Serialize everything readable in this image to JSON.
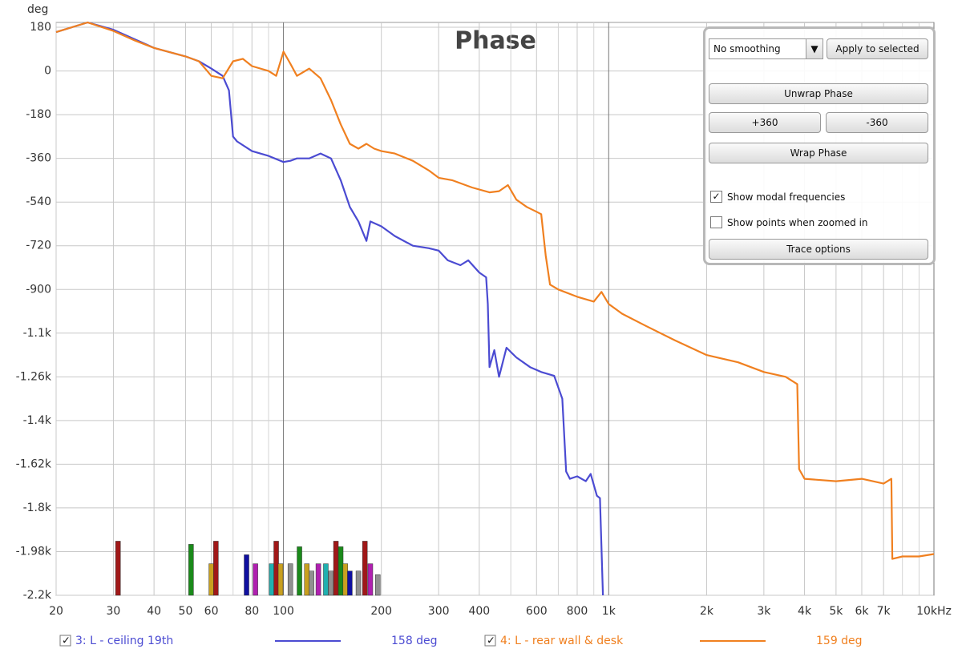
{
  "chart_data": {
    "type": "line",
    "title": "Phase",
    "y_label": "deg",
    "xscale": "log",
    "xlim": [
      20,
      10000
    ],
    "ylim": [
      -2160,
      200
    ],
    "xticks": [
      20,
      30,
      40,
      50,
      60,
      80,
      100,
      200,
      300,
      400,
      600,
      800,
      {
        "value": 1000,
        "label": "1k"
      },
      {
        "value": 2000,
        "label": "2k"
      },
      {
        "value": 3000,
        "label": "3k"
      },
      {
        "value": 4000,
        "label": "4k"
      },
      {
        "value": 5000,
        "label": "5k"
      },
      {
        "value": 6000,
        "label": "6k"
      },
      {
        "value": 7000,
        "label": "7k"
      },
      {
        "value": 10000,
        "label": "10kHz"
      }
    ],
    "xgrid": [
      70,
      90,
      500,
      700,
      900,
      8000,
      9000
    ],
    "yticks": [
      180,
      0,
      -180,
      -360,
      -540,
      -720,
      -900,
      {
        "value": -1080,
        "label": "-1.1k"
      },
      {
        "value": -1260,
        "label": "-1.26k"
      },
      {
        "value": -1440,
        "label": "-1.4k"
      },
      {
        "value": -1620,
        "label": "-1.62k"
      },
      {
        "value": -1800,
        "label": "-1.8k"
      },
      {
        "value": -1980,
        "label": "-1.98k"
      },
      {
        "value": -2160,
        "label": "-2.2k"
      }
    ],
    "grid": true,
    "series": [
      {
        "name": "3: L - ceiling 19th",
        "color": "#4b4bd2",
        "readout": "158 deg",
        "x": [
          20,
          25,
          30,
          35,
          40,
          50,
          55,
          60,
          65,
          68,
          70,
          72,
          80,
          90,
          100,
          105,
          110,
          120,
          130,
          140,
          150,
          160,
          170,
          180,
          185,
          200,
          220,
          250,
          280,
          300,
          320,
          350,
          370,
          400,
          420,
          425,
          430,
          445,
          460,
          485,
          520,
          573,
          620,
          680,
          720,
          740,
          760,
          800,
          850,
          880,
          920,
          940,
          960
        ],
        "values": [
          160,
          200,
          170,
          130,
          95,
          60,
          40,
          10,
          -20,
          -80,
          -270,
          -290,
          -330,
          -350,
          -375,
          -370,
          -360,
          -360,
          -340,
          -360,
          -450,
          -560,
          -620,
          -700,
          -620,
          -640,
          -680,
          -720,
          -730,
          -740,
          -780,
          -800,
          -780,
          -830,
          -850,
          -960,
          -1220,
          -1150,
          -1260,
          -1140,
          -1180,
          -1220,
          -1240,
          -1256,
          -1350,
          -1650,
          -1680,
          -1670,
          -1690,
          -1660,
          -1750,
          -1760,
          -2160
        ]
      },
      {
        "name": "4: L - rear wall & desk",
        "color": "#f08020",
        "readout": "159 deg",
        "x": [
          20,
          25,
          30,
          35,
          40,
          50,
          55,
          60,
          65,
          70,
          75,
          80,
          90,
          95,
          100,
          105,
          110,
          120,
          130,
          140,
          150,
          160,
          170,
          180,
          190,
          200,
          220,
          250,
          280,
          300,
          330,
          380,
          430,
          460,
          490,
          520,
          560,
          600,
          620,
          640,
          660,
          700,
          800,
          900,
          950,
          1000,
          1100,
          1300,
          1600,
          2000,
          2500,
          3000,
          3500,
          3800,
          3850,
          4000,
          5000,
          6000,
          7000,
          7400,
          7450,
          8000,
          9000,
          10000
        ],
        "values": [
          160,
          200,
          165,
          125,
          95,
          60,
          40,
          -20,
          -30,
          40,
          50,
          20,
          0,
          -20,
          80,
          30,
          -20,
          10,
          -30,
          -120,
          -220,
          -300,
          -320,
          -300,
          -320,
          -330,
          -340,
          -370,
          -410,
          -440,
          -450,
          -480,
          -500,
          -495,
          -470,
          -530,
          -560,
          -580,
          -590,
          -760,
          -880,
          -900,
          -930,
          -950,
          -910,
          -960,
          -1000,
          -1050,
          -1110,
          -1170,
          -1200,
          -1240,
          -1260,
          -1290,
          -1640,
          -1680,
          -1690,
          -1680,
          -1700,
          -1680,
          -2010,
          -2000,
          -2000,
          -1990
        ]
      }
    ],
    "modal_frequencies": {
      "x": [
        31,
        52,
        60,
        62,
        77,
        82,
        92,
        95,
        98,
        105,
        112,
        118,
        122,
        128,
        135,
        140,
        145,
        150,
        155,
        160,
        170,
        178,
        185,
        195
      ],
      "values": [
        -1937,
        -1950,
        -2030,
        -1937,
        -1993,
        -2030,
        -2030,
        -1937,
        -2030,
        -2030,
        -1960,
        -2030,
        -2060,
        -2030,
        -2030,
        -2060,
        -1937,
        -1960,
        -2030,
        -2060,
        -2060,
        -1937,
        -2030,
        -2075
      ],
      "colors": [
        "#a01818",
        "#1a8a1a",
        "#c8a020",
        "#a01818",
        "#1010a0",
        "#b020b0",
        "#20b0b0",
        "#a01818",
        "#c8a020",
        "#909090",
        "#1a8a1a",
        "#c8a020",
        "#909090",
        "#b020b0",
        "#20b0b0",
        "#909090",
        "#a01818",
        "#1a8a1a",
        "#c8a020",
        "#1010a0",
        "#909090",
        "#a01818",
        "#b020b0",
        "#909090"
      ]
    }
  },
  "controls": {
    "smoothing": "No  smoothing",
    "apply": "Apply to selected",
    "unwrap": "Unwrap Phase",
    "plus": "+360",
    "minus": "-360",
    "wrap": "Wrap Phase",
    "modal": "Show modal frequencies",
    "points": "Show points when zoomed in",
    "trace": "Trace options"
  }
}
